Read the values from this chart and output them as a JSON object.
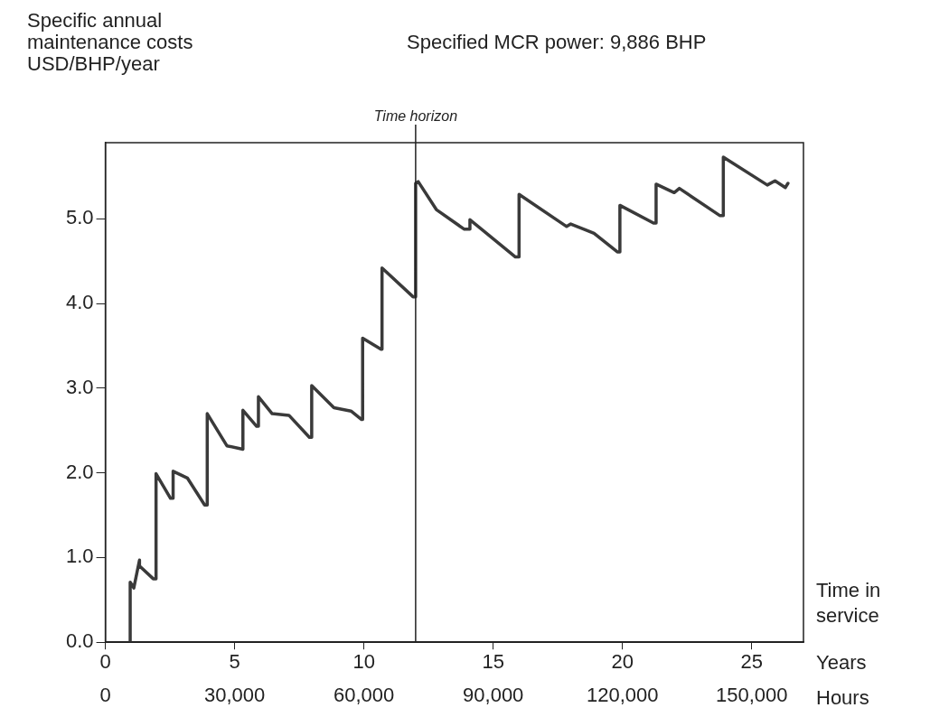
{
  "chart_data": {
    "type": "line",
    "subtitle": "Specified MCR power: 9,886 BHP",
    "ylabel": "Specific annual maintenance costs USD/BHP/year",
    "xlabel": "Years",
    "x2label": "Hours",
    "annotations": [
      "Time in service"
    ],
    "xlim": [
      0,
      27
    ],
    "xticks": [
      0,
      5,
      10,
      15,
      20,
      25
    ],
    "x2lim": [
      0,
      162000
    ],
    "x2ticks": [
      0,
      {
        "value": 30000,
        "label": "30,000"
      },
      {
        "value": 60000,
        "label": "60,000"
      },
      {
        "value": 90000,
        "label": "90,000"
      },
      {
        "value": 120000,
        "label": "120,000"
      },
      {
        "value": 150000,
        "label": "150,000"
      }
    ],
    "ylim": [
      0,
      5.9
    ],
    "yticks": [
      {
        "value": 0,
        "label": "0.0"
      },
      {
        "value": 1,
        "label": "1.0"
      },
      {
        "value": 2,
        "label": "2.0"
      },
      {
        "value": 3,
        "label": "3.0"
      },
      {
        "value": 4,
        "label": "4.0"
      },
      {
        "value": 5,
        "label": "5.0"
      }
    ],
    "grid": false,
    "legend": false,
    "marker": "none",
    "line_style": "solid",
    "ref_lines": [
      {
        "axis": "x",
        "value": 12,
        "label": "Time horizon",
        "color": "#222222"
      }
    ],
    "series": [
      {
        "color": "#3a3a3a",
        "x": [
          0.96,
          0.96,
          1.1,
          1.1,
          1.32,
          1.32,
          1.85,
          1.96,
          1.96,
          2.52,
          2.62,
          2.62,
          3.17,
          3.84,
          3.94,
          3.94,
          4.7,
          5.32,
          5.32,
          5.85,
          5.92,
          5.92,
          6.45,
          7.1,
          7.89,
          7.98,
          7.98,
          8.84,
          9.5,
          9.91,
          9.95,
          9.95,
          10.66,
          10.7,
          10.7,
          11.9,
          12.0,
          12.0,
          12.1,
          12.8,
          13.87,
          14.1,
          14.1,
          15.86,
          16.0,
          16.0,
          17.84,
          18.0,
          18.9,
          19.8,
          19.9,
          19.9,
          21.2,
          21.3,
          21.3,
          22.0,
          22.2,
          23.76,
          23.9,
          23.9,
          25.6,
          25.9,
          26.3,
          26.4
        ],
        "values": [
          0,
          0.71,
          0.64,
          0.64,
          0.97,
          0.9,
          0.75,
          0.75,
          1.99,
          1.7,
          1.7,
          2.02,
          1.94,
          1.62,
          1.62,
          2.7,
          2.32,
          2.28,
          2.74,
          2.55,
          2.55,
          2.9,
          2.7,
          2.68,
          2.42,
          2.42,
          3.03,
          2.77,
          2.73,
          2.63,
          2.63,
          3.59,
          3.46,
          3.46,
          4.42,
          4.08,
          4.08,
          5.42,
          5.44,
          5.11,
          4.88,
          4.88,
          4.99,
          4.55,
          4.55,
          5.29,
          4.91,
          4.94,
          4.83,
          4.61,
          4.61,
          5.16,
          4.95,
          4.95,
          5.41,
          5.31,
          5.36,
          5.04,
          5.04,
          5.73,
          5.4,
          5.45,
          5.37,
          5.42
        ]
      }
    ]
  }
}
